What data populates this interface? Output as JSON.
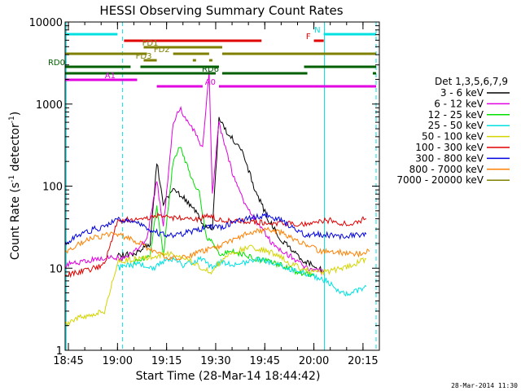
{
  "chart_data": {
    "type": "line",
    "title": "HESSI Observing Summary Count Rates",
    "xlabel": "Start Time (28-Mar-14 18:44:42)",
    "ylabel": "Count Rate (s⁻¹ detector⁻¹)",
    "ylabel_main": "Count Rate (s",
    "ylabel_sup1": "-1",
    "ylabel_mid": " detector",
    "ylabel_sup2": "-1",
    "ylabel_end": ")",
    "xlim_min": [
      1124,
      1220
    ],
    "ylim": [
      1,
      10000
    ],
    "yscale": "log",
    "x_ticks": [
      {
        "min": 1125,
        "label": "18:45"
      },
      {
        "min": 1140,
        "label": "19:00"
      },
      {
        "min": 1155,
        "label": "19:15"
      },
      {
        "min": 1170,
        "label": "19:30"
      },
      {
        "min": 1185,
        "label": "19:45"
      },
      {
        "min": 1200,
        "label": "20:00"
      },
      {
        "min": 1215,
        "label": "20:15"
      }
    ],
    "y_ticks": [
      {
        "value": 1,
        "label": "1"
      },
      {
        "value": 10,
        "label": "10"
      },
      {
        "value": 100,
        "label": "100"
      },
      {
        "value": 1000,
        "label": "1000"
      },
      {
        "value": 10000,
        "label": "10000"
      }
    ],
    "legend": {
      "placement": "right",
      "title": "Det 1,3,5,6,7,9",
      "entries": [
        {
          "label": "3 - 6 keV",
          "color": "#000000"
        },
        {
          "label": "6 - 12 keV",
          "color": "#e000e0"
        },
        {
          "label": "12 - 25 keV",
          "color": "#00e000"
        },
        {
          "label": "25 - 50 keV",
          "color": "#00e0e0"
        },
        {
          "label": "50 - 100 keV",
          "color": "#d4d400"
        },
        {
          "label": "100 - 300 keV",
          "color": "#e00000"
        },
        {
          "label": "300 - 800 keV",
          "color": "#0000e0"
        },
        {
          "label": "800 - 7000 keV",
          "color": "#ff8000"
        },
        {
          "label": "7000 - 20000 keV",
          "color": "#808000"
        }
      ]
    },
    "series": [
      {
        "name": "3 - 6 keV",
        "color": "#000000",
        "points": [
          [
            1140,
            14
          ],
          [
            1145,
            15
          ],
          [
            1150,
            20
          ],
          [
            1152,
            200
          ],
          [
            1154,
            60
          ],
          [
            1157,
            90
          ],
          [
            1160,
            75
          ],
          [
            1163,
            55
          ],
          [
            1166,
            35
          ],
          [
            1169,
            30
          ],
          [
            1171,
            650
          ],
          [
            1174,
            420
          ],
          [
            1178,
            280
          ],
          [
            1182,
            90
          ],
          [
            1186,
            40
          ],
          [
            1190,
            22
          ],
          [
            1194,
            16
          ],
          [
            1197,
            12
          ],
          [
            1200,
            11
          ],
          [
            1203,
            9
          ]
        ]
      },
      {
        "name": "6 - 12 keV",
        "color": "#e000e0",
        "points": [
          [
            1124,
            11
          ],
          [
            1134,
            13
          ],
          [
            1138,
            14
          ],
          [
            1141,
            13
          ],
          [
            1144,
            15
          ],
          [
            1149,
            22
          ],
          [
            1152,
            120
          ],
          [
            1154,
            30
          ],
          [
            1157,
            600
          ],
          [
            1159,
            900
          ],
          [
            1163,
            500
          ],
          [
            1166,
            300
          ],
          [
            1168,
            2400
          ],
          [
            1169,
            80
          ],
          [
            1171,
            600
          ],
          [
            1175,
            150
          ],
          [
            1179,
            60
          ],
          [
            1184,
            30
          ],
          [
            1188,
            18
          ],
          [
            1193,
            14
          ],
          [
            1198,
            10
          ],
          [
            1203,
            9
          ]
        ]
      },
      {
        "name": "12 - 25 keV",
        "color": "#00e000",
        "points": [
          [
            1145,
            12
          ],
          [
            1150,
            14
          ],
          [
            1152,
            60
          ],
          [
            1154,
            14
          ],
          [
            1157,
            200
          ],
          [
            1159,
            300
          ],
          [
            1162,
            150
          ],
          [
            1165,
            80
          ],
          [
            1167,
            25
          ],
          [
            1169,
            20
          ],
          [
            1171,
            15
          ],
          [
            1174,
            16
          ],
          [
            1178,
            15
          ],
          [
            1182,
            13
          ],
          [
            1186,
            12
          ],
          [
            1190,
            11
          ],
          [
            1195,
            9
          ],
          [
            1200,
            8
          ]
        ]
      },
      {
        "name": "25 - 50 keV",
        "color": "#00e0e0",
        "points": [
          [
            1140,
            10
          ],
          [
            1144,
            11
          ],
          [
            1148,
            11
          ],
          [
            1151,
            10
          ],
          [
            1154,
            12
          ],
          [
            1157,
            13
          ],
          [
            1160,
            11
          ],
          [
            1163,
            12
          ],
          [
            1166,
            13
          ],
          [
            1169,
            10
          ],
          [
            1172,
            12
          ],
          [
            1176,
            11
          ],
          [
            1180,
            12
          ],
          [
            1184,
            13
          ],
          [
            1188,
            11
          ],
          [
            1192,
            10
          ],
          [
            1196,
            9
          ],
          [
            1200,
            8
          ],
          [
            1204,
            7
          ],
          [
            1208,
            5
          ],
          [
            1212,
            5
          ],
          [
            1216,
            6
          ]
        ]
      },
      {
        "name": "50 - 100 keV",
        "color": "#d4d400",
        "points": [
          [
            1124,
            2
          ],
          [
            1128,
            2.5
          ],
          [
            1133,
            2.8
          ],
          [
            1136,
            3
          ],
          [
            1140,
            12
          ],
          [
            1146,
            13
          ],
          [
            1151,
            14
          ],
          [
            1156,
            15
          ],
          [
            1161,
            13
          ],
          [
            1164,
            11
          ],
          [
            1166,
            10
          ],
          [
            1169,
            9
          ],
          [
            1172,
            13
          ],
          [
            1176,
            16
          ],
          [
            1180,
            18
          ],
          [
            1184,
            17
          ],
          [
            1188,
            15
          ],
          [
            1192,
            12
          ],
          [
            1196,
            10
          ],
          [
            1200,
            9
          ],
          [
            1204,
            9
          ],
          [
            1208,
            10
          ],
          [
            1212,
            11
          ],
          [
            1216,
            13
          ]
        ]
      },
      {
        "name": "100 - 300 keV",
        "color": "#e00000",
        "points": [
          [
            1124,
            8
          ],
          [
            1128,
            9
          ],
          [
            1133,
            10
          ],
          [
            1136,
            11
          ],
          [
            1140,
            38
          ],
          [
            1146,
            40
          ],
          [
            1151,
            42
          ],
          [
            1154,
            45
          ],
          [
            1156,
            42
          ],
          [
            1160,
            40
          ],
          [
            1164,
            39
          ],
          [
            1168,
            45
          ],
          [
            1170,
            40
          ],
          [
            1172,
            38
          ],
          [
            1178,
            37
          ],
          [
            1184,
            36
          ],
          [
            1190,
            35
          ],
          [
            1195,
            34
          ],
          [
            1199,
            35
          ],
          [
            1200,
            38
          ],
          [
            1205,
            38
          ],
          [
            1208,
            35
          ],
          [
            1212,
            36
          ],
          [
            1216,
            40
          ]
        ]
      },
      {
        "name": "300 - 800 keV",
        "color": "#0000e0",
        "points": [
          [
            1124,
            20
          ],
          [
            1128,
            25
          ],
          [
            1133,
            30
          ],
          [
            1136,
            32
          ],
          [
            1140,
            40
          ],
          [
            1145,
            38
          ],
          [
            1150,
            30
          ],
          [
            1153,
            26
          ],
          [
            1157,
            25
          ],
          [
            1161,
            27
          ],
          [
            1165,
            30
          ],
          [
            1169,
            32
          ],
          [
            1172,
            32
          ],
          [
            1177,
            38
          ],
          [
            1182,
            42
          ],
          [
            1186,
            44
          ],
          [
            1190,
            38
          ],
          [
            1194,
            30
          ],
          [
            1198,
            25
          ],
          [
            1201,
            26
          ],
          [
            1205,
            25
          ],
          [
            1208,
            24
          ],
          [
            1212,
            25
          ],
          [
            1216,
            26
          ]
        ]
      },
      {
        "name": "800 - 7000 keV",
        "color": "#ff8000",
        "points": [
          [
            1124,
            16
          ],
          [
            1128,
            20
          ],
          [
            1133,
            24
          ],
          [
            1136,
            25
          ],
          [
            1140,
            26
          ],
          [
            1145,
            22
          ],
          [
            1150,
            17
          ],
          [
            1154,
            14
          ],
          [
            1158,
            13
          ],
          [
            1162,
            14
          ],
          [
            1166,
            16
          ],
          [
            1170,
            18
          ],
          [
            1174,
            21
          ],
          [
            1178,
            25
          ],
          [
            1182,
            28
          ],
          [
            1186,
            30
          ],
          [
            1190,
            27
          ],
          [
            1194,
            22
          ],
          [
            1198,
            19
          ],
          [
            1202,
            16
          ],
          [
            1206,
            16
          ],
          [
            1210,
            15
          ],
          [
            1214,
            15
          ],
          [
            1217,
            16
          ]
        ]
      },
      {
        "name": "7000 - 20000 keV",
        "color": "#808000",
        "points": []
      }
    ],
    "flag_bars": [
      {
        "label": "N",
        "color": "#00e0e0",
        "ylevel": 0,
        "segments": [
          [
            1124,
            1140
          ],
          [
            1203,
            1219
          ]
        ]
      },
      {
        "label": "F",
        "color": "#e00000",
        "ylevel": 1,
        "segments": [
          [
            1142,
            1184
          ],
          [
            1200,
            1203
          ]
        ]
      },
      {
        "label": "FD1",
        "color": "#808000",
        "ylevel": 2,
        "segments": [
          [
            1148,
            1172
          ]
        ]
      },
      {
        "label": "FD2",
        "color": "#808000",
        "ylevel": 3,
        "segments": [
          [
            1124,
            1149
          ],
          [
            1157,
            1168
          ],
          [
            1172,
            1219
          ]
        ]
      },
      {
        "label": "FD3",
        "color": "#808000",
        "ylevel": 4,
        "segments": [
          [
            1148,
            1152
          ],
          [
            1163,
            1164
          ],
          [
            1168,
            1169
          ]
        ]
      },
      {
        "label": "RD0",
        "color": "#006000",
        "ylevel": 5,
        "segments": [
          [
            1124,
            1144
          ],
          [
            1147,
            1171
          ],
          [
            1197,
            1219
          ]
        ]
      },
      {
        "label": "RD6",
        "color": "#006000",
        "ylevel": 6,
        "segments": [
          [
            1124,
            1170
          ],
          [
            1172,
            1198
          ],
          [
            1218,
            1219
          ]
        ]
      },
      {
        "label": "A1",
        "color": "#e000e0",
        "ylevel": 7,
        "segments": [
          [
            1124,
            1146
          ]
        ]
      },
      {
        "label": "A0",
        "color": "#e000e0",
        "ylevel": 8,
        "segments": [
          [
            1152,
            1166
          ],
          [
            1171,
            1219
          ]
        ]
      }
    ],
    "vlines": [
      {
        "min": 1124.3,
        "color": "#00e0e0",
        "style": "solid"
      },
      {
        "min": 1141.5,
        "color": "#00e0e0",
        "style": "dashed"
      },
      {
        "min": 1203.2,
        "color": "#00e0e0",
        "style": "solid"
      },
      {
        "min": 1219,
        "color": "#00e0e0",
        "style": "dashed"
      }
    ]
  },
  "footer": {
    "timestamp": "28-Mar-2014 11:30"
  }
}
